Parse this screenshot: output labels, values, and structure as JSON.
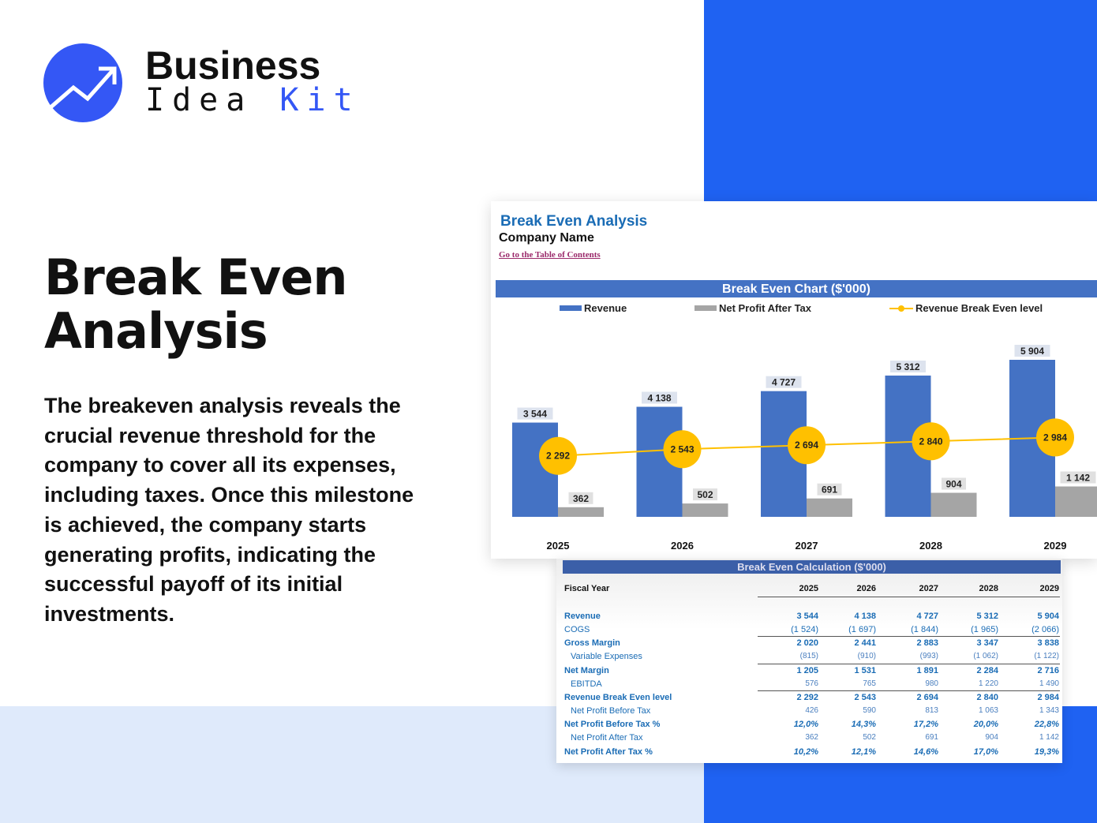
{
  "brand": {
    "line1": "Business",
    "line2_a": "Idea",
    "line2_b": "Kit",
    "accent": "#3457f5"
  },
  "hero": {
    "title": "Break Even Analysis",
    "description": "The breakeven analysis reveals the crucial revenue threshold for the company to cover all its expenses, including taxes. Once this milestone is achieved, the company starts generating profits, indicating the successful payoff of its initial investments."
  },
  "sheet": {
    "title": "Break Even Analysis",
    "company": "Company Name",
    "toc_link": "Go to the Table of Contents"
  },
  "chart_data": {
    "type": "bar",
    "title": "Break Even Chart ($'000)",
    "categories": [
      "2025",
      "2026",
      "2027",
      "2028",
      "2029"
    ],
    "series": [
      {
        "name": "Revenue",
        "type": "bar",
        "color": "#4472c4",
        "values": [
          3544,
          4138,
          4727,
          5312,
          5904
        ],
        "labels": [
          "3 544",
          "4 138",
          "4 727",
          "5 312",
          "5 904"
        ]
      },
      {
        "name": "Net Profit After Tax",
        "type": "bar",
        "color": "#a5a5a5",
        "values": [
          362,
          502,
          691,
          904,
          1142
        ],
        "labels": [
          "362",
          "502",
          "691",
          "904",
          "1 142"
        ]
      },
      {
        "name": "Revenue Break Even level",
        "type": "line",
        "color": "#ffc000",
        "values": [
          2292,
          2543,
          2694,
          2840,
          2984
        ],
        "labels": [
          "2 292",
          "2 543",
          "2 694",
          "2 840",
          "2 984"
        ]
      }
    ],
    "legend": "top",
    "grid": false
  },
  "table": {
    "title": "Break Even Calculation ($'000)",
    "header": "Fiscal Year",
    "years": [
      "2025",
      "2026",
      "2027",
      "2028",
      "2029"
    ],
    "rows": [
      {
        "label": "Revenue",
        "style": "b",
        "values": [
          "3 544",
          "4 138",
          "4 727",
          "5 312",
          "5 904"
        ]
      },
      {
        "label": "COGS",
        "style": "",
        "values": [
          "(1 524)",
          "(1 697)",
          "(1 844)",
          "(1 965)",
          "(2 066)"
        ]
      },
      {
        "label": "Gross Margin",
        "style": "b",
        "values": [
          "2 020",
          "2 441",
          "2 883",
          "3 347",
          "3 838"
        ]
      },
      {
        "label": "Variable Expenses",
        "style": "sub",
        "values": [
          "(815)",
          "(910)",
          "(993)",
          "(1 062)",
          "(1 122)"
        ]
      },
      {
        "label": "Net Margin",
        "style": "b",
        "values": [
          "1 205",
          "1 531",
          "1 891",
          "2 284",
          "2 716"
        ]
      },
      {
        "label": "EBITDA",
        "style": "sub",
        "values": [
          "576",
          "765",
          "980",
          "1 220",
          "1 490"
        ]
      },
      {
        "label": "Revenue Break Even level",
        "style": "b",
        "values": [
          "2 292",
          "2 543",
          "2 694",
          "2 840",
          "2 984"
        ]
      },
      {
        "label": "Net Profit Before Tax",
        "style": "sub",
        "values": [
          "426",
          "590",
          "813",
          "1 063",
          "1 343"
        ]
      },
      {
        "label": "Net Profit Before Tax %",
        "style": "b i",
        "values": [
          "12,0%",
          "14,3%",
          "17,2%",
          "20,0%",
          "22,8%"
        ]
      },
      {
        "label": "Net Profit After Tax",
        "style": "sub",
        "values": [
          "362",
          "502",
          "691",
          "904",
          "1 142"
        ]
      },
      {
        "label": "Net Profit After Tax %",
        "style": "b i",
        "values": [
          "10,2%",
          "12,1%",
          "14,6%",
          "17,0%",
          "19,3%"
        ]
      }
    ]
  }
}
